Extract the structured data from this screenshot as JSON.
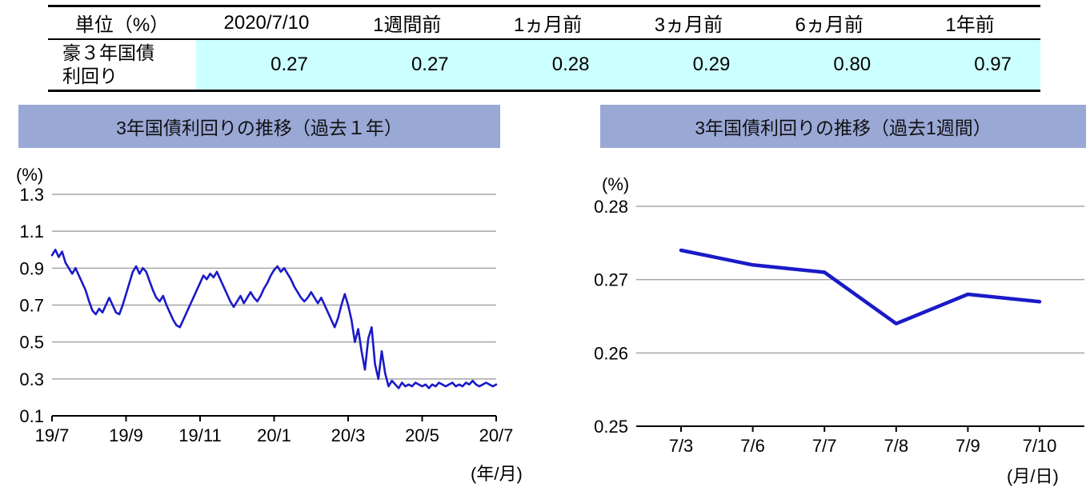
{
  "colors": {
    "title_bar_bg": "#9AA8D6",
    "value_cell_bg": "#CCFFFF",
    "grid": "#A6A6A6",
    "axis": "#000000"
  },
  "table": {
    "headers": [
      "単位（%）",
      "2020/7/10",
      "1週間前",
      "1ヵ月前",
      "3ヵ月前",
      "6ヵ月前",
      "1年前"
    ],
    "row_label": "豪３年国債利回り",
    "values": [
      "0.27",
      "0.27",
      "0.28",
      "0.29",
      "0.80",
      "0.97"
    ]
  },
  "chart_data": [
    {
      "type": "line",
      "title": "3年国債利回りの推移（過去１年）",
      "unit_label": "(%)",
      "xaxis_label": "(年/月)",
      "x_ticks": [
        "19/7",
        "19/9",
        "19/11",
        "20/1",
        "20/3",
        "20/5",
        "20/7"
      ],
      "y_ticks": [
        "0.1",
        "0.3",
        "0.5",
        "0.7",
        "0.9",
        "1.1",
        "1.3"
      ],
      "ylim": [
        0.1,
        1.3
      ],
      "legend": "none",
      "grid": "horizontal",
      "line_color": "#1A1AC8",
      "line_width": 2.6,
      "values": [
        0.97,
        1.0,
        0.96,
        0.99,
        0.93,
        0.9,
        0.87,
        0.9,
        0.86,
        0.82,
        0.78,
        0.72,
        0.67,
        0.65,
        0.68,
        0.66,
        0.7,
        0.74,
        0.7,
        0.66,
        0.65,
        0.7,
        0.76,
        0.82,
        0.88,
        0.91,
        0.87,
        0.9,
        0.88,
        0.83,
        0.78,
        0.74,
        0.72,
        0.75,
        0.7,
        0.66,
        0.62,
        0.59,
        0.58,
        0.62,
        0.66,
        0.7,
        0.74,
        0.78,
        0.82,
        0.86,
        0.84,
        0.87,
        0.85,
        0.88,
        0.84,
        0.8,
        0.76,
        0.72,
        0.69,
        0.72,
        0.75,
        0.71,
        0.74,
        0.77,
        0.74,
        0.72,
        0.75,
        0.79,
        0.82,
        0.86,
        0.89,
        0.91,
        0.88,
        0.9,
        0.87,
        0.84,
        0.8,
        0.77,
        0.74,
        0.72,
        0.74,
        0.77,
        0.74,
        0.71,
        0.74,
        0.7,
        0.66,
        0.62,
        0.58,
        0.63,
        0.7,
        0.76,
        0.7,
        0.62,
        0.5,
        0.57,
        0.45,
        0.35,
        0.52,
        0.58,
        0.38,
        0.3,
        0.45,
        0.33,
        0.26,
        0.29,
        0.27,
        0.25,
        0.28,
        0.26,
        0.27,
        0.26,
        0.28,
        0.27,
        0.26,
        0.27,
        0.25,
        0.27,
        0.26,
        0.28,
        0.27,
        0.26,
        0.27,
        0.28,
        0.26,
        0.27,
        0.26,
        0.28,
        0.27,
        0.29,
        0.27,
        0.26,
        0.27,
        0.28,
        0.27,
        0.26,
        0.27
      ]
    },
    {
      "type": "line",
      "title": "3年国債利回りの推移（過去1週間）",
      "unit_label": "(%)",
      "xaxis_label": "(月/日)",
      "x_ticks": [
        "7/3",
        "7/6",
        "7/7",
        "7/8",
        "7/9",
        "7/10"
      ],
      "y_ticks": [
        "0.25",
        "0.26",
        "0.27",
        "0.28"
      ],
      "ylim": [
        0.25,
        0.28
      ],
      "legend": "none",
      "grid": "horizontal",
      "line_color": "#1A1AC8",
      "line_width": 4.5,
      "values": [
        0.274,
        0.272,
        0.271,
        0.264,
        0.268,
        0.267
      ]
    }
  ]
}
